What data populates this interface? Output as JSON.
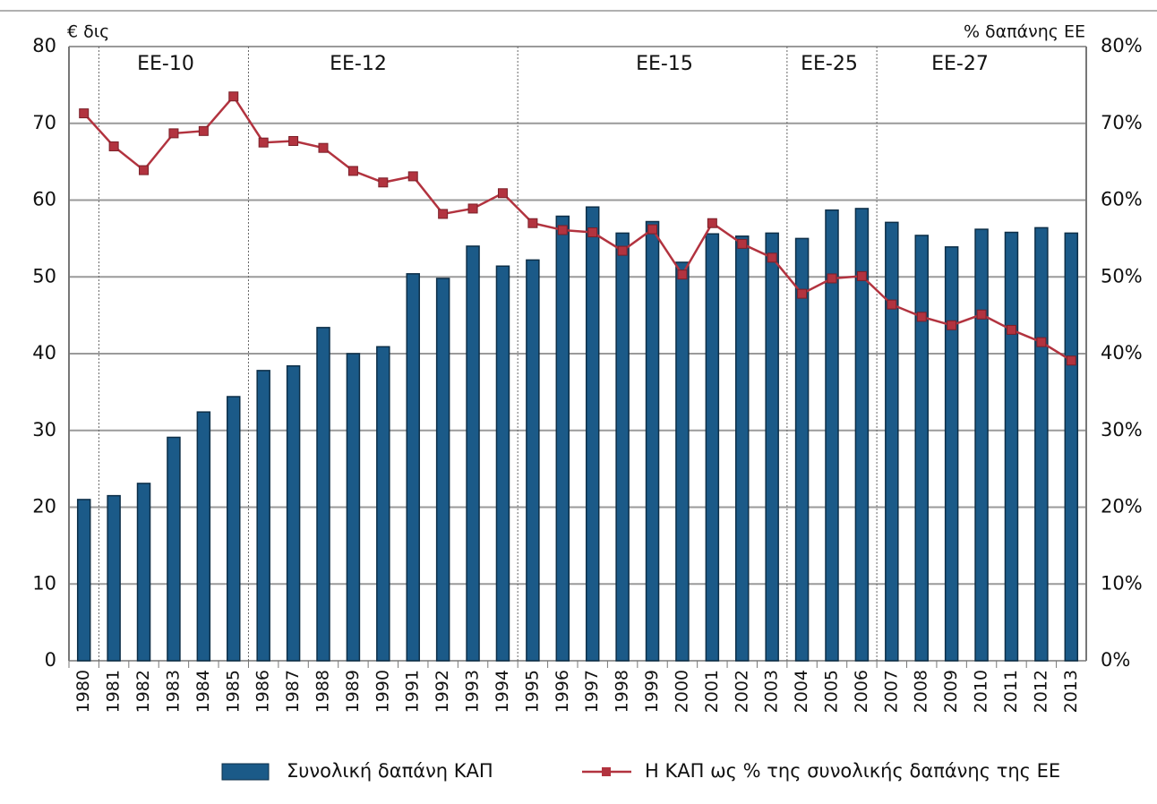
{
  "chart_data": {
    "type": "bar-line",
    "y_label": "€ δις",
    "y2_label": "% δαπάνης ΕΕ",
    "categories": [
      "1980",
      "1981",
      "1982",
      "1983",
      "1984",
      "1985",
      "1986",
      "1987",
      "1988",
      "1989",
      "1990",
      "1991",
      "1992",
      "1993",
      "1994",
      "1995",
      "1996",
      "1997",
      "1998",
      "1999",
      "2000",
      "2001",
      "2002",
      "2003",
      "2004",
      "2005",
      "2006",
      "2007",
      "2008",
      "2009",
      "2010",
      "2011",
      "2012",
      "2013"
    ],
    "series": [
      {
        "name": "Συνολική δαπάνη ΚΑΠ",
        "type": "bar",
        "color": "#1b5a88",
        "values": [
          21,
          21.5,
          23.1,
          29.1,
          32.4,
          34.4,
          37.8,
          38.4,
          43.4,
          40,
          40.9,
          50.4,
          49.8,
          54,
          51.4,
          52.2,
          57.9,
          59.1,
          55.7,
          57.2,
          51.9,
          55.6,
          55.3,
          55.7,
          55,
          58.7,
          58.9,
          57.1,
          55.4,
          53.9,
          56.2,
          55.8,
          56.4,
          55.7
        ]
      },
      {
        "name": "Η ΚΑΠ ως % της συνολικής δαπάνης της ΕΕ",
        "type": "line",
        "axis": "y2",
        "color": "#b2333f",
        "values": [
          71.3,
          67,
          63.9,
          68.7,
          69,
          73.5,
          67.5,
          67.7,
          66.8,
          63.8,
          62.3,
          63.1,
          58.2,
          58.9,
          60.9,
          57,
          56.1,
          55.8,
          53.4,
          56.2,
          50.3,
          57,
          54.3,
          52.5,
          47.8,
          49.8,
          50.1,
          46.4,
          44.8,
          43.7,
          45.1,
          43.1,
          41.5,
          39.1
        ]
      }
    ],
    "ylim": [
      0,
      80
    ],
    "yticks": [
      0,
      10,
      20,
      30,
      40,
      50,
      60,
      70,
      80
    ],
    "y2lim": [
      0,
      80
    ],
    "y2ticks": [
      {
        "value": 0,
        "label": "0%"
      },
      {
        "value": 10,
        "label": "10%"
      },
      {
        "value": 20,
        "label": "20%"
      },
      {
        "value": 30,
        "label": "30%"
      },
      {
        "value": 40,
        "label": "40%"
      },
      {
        "value": 50,
        "label": "50%"
      },
      {
        "value": 60,
        "label": "60%"
      },
      {
        "value": 70,
        "label": "70%"
      },
      {
        "value": 80,
        "label": "80%"
      }
    ],
    "grid": true,
    "annotations": [
      "ΕΕ-10",
      "ΕΕ-12",
      "ΕΕ-15",
      "ΕΕ-25",
      "ΕΕ-27"
    ],
    "legend": "bottom"
  }
}
